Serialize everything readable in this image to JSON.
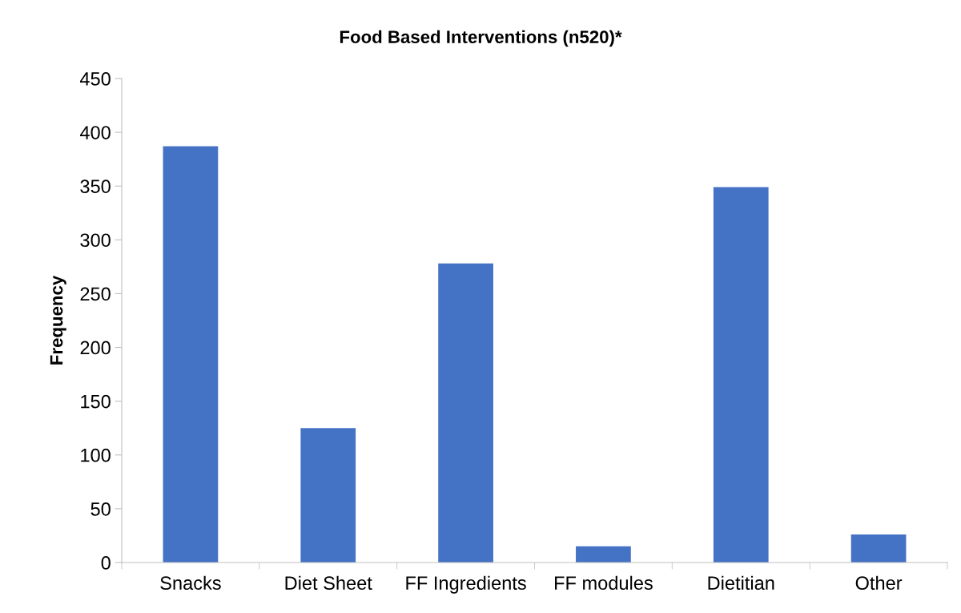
{
  "chart_data": {
    "type": "bar",
    "title": "Food Based Interventions (n520)*",
    "ylabel": "Frequency",
    "categories": [
      "Snacks",
      "Diet Sheet",
      "FF Ingredients",
      "FF modules",
      "Dietitian",
      "Other"
    ],
    "values": [
      387,
      125,
      278,
      15,
      349,
      26
    ],
    "color": "#4472c4",
    "ylim": [
      0,
      450
    ],
    "yticks": [
      0,
      50,
      100,
      150,
      200,
      250,
      300,
      350,
      400,
      450
    ],
    "grid": false
  }
}
